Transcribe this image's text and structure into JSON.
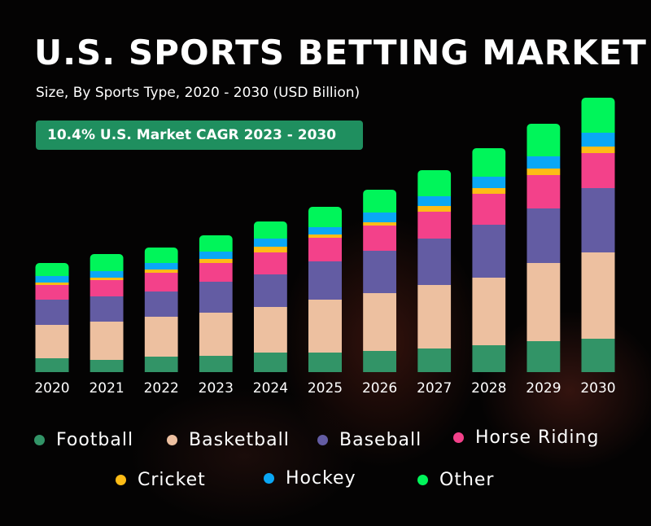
{
  "chart_data": {
    "type": "bar",
    "stacked": true,
    "title": "U.S. SPORTS BETTING MARKET",
    "subtitle": "Size, By Sports Type, 2020 - 2030 (USD Billion)",
    "annotation": "10.4% U.S. Market CAGR  2023 - 2030",
    "categories": [
      "2020",
      "2021",
      "2022",
      "2023",
      "2024",
      "2025",
      "2026",
      "2027",
      "2028",
      "2029",
      "2030"
    ],
    "value_note": "relative values estimated from bar heights; no y-axis printed",
    "series": [
      {
        "name": "Football",
        "color": "#329467",
        "values": [
          17,
          15,
          19,
          20,
          24,
          24,
          26,
          29,
          33,
          38,
          41
        ]
      },
      {
        "name": "Basketball",
        "color": "#edc0a0",
        "values": [
          41,
          47,
          49,
          53,
          56,
          65,
          71,
          78,
          83,
          96,
          106
        ]
      },
      {
        "name": "Baseball",
        "color": "#635ca3",
        "values": [
          31,
          31,
          31,
          38,
          40,
          47,
          52,
          57,
          65,
          67,
          79
        ]
      },
      {
        "name": "Horse Riding",
        "color": "#f3418a",
        "values": [
          18,
          20,
          23,
          23,
          27,
          29,
          31,
          33,
          38,
          41,
          43
        ]
      },
      {
        "name": "Cricket",
        "color": "#fdbc16",
        "values": [
          3,
          3,
          4,
          5,
          7,
          4,
          4,
          7,
          7,
          8,
          8
        ]
      },
      {
        "name": "Hockey",
        "color": "#0aa7f5",
        "values": [
          8,
          8,
          8,
          9,
          10,
          9,
          12,
          12,
          14,
          15,
          17
        ]
      },
      {
        "name": "Other",
        "color": "#00f55a",
        "values": [
          16,
          21,
          19,
          20,
          21,
          25,
          28,
          32,
          35,
          40,
          43
        ]
      }
    ],
    "legend_position": "bottom",
    "grid": false
  }
}
